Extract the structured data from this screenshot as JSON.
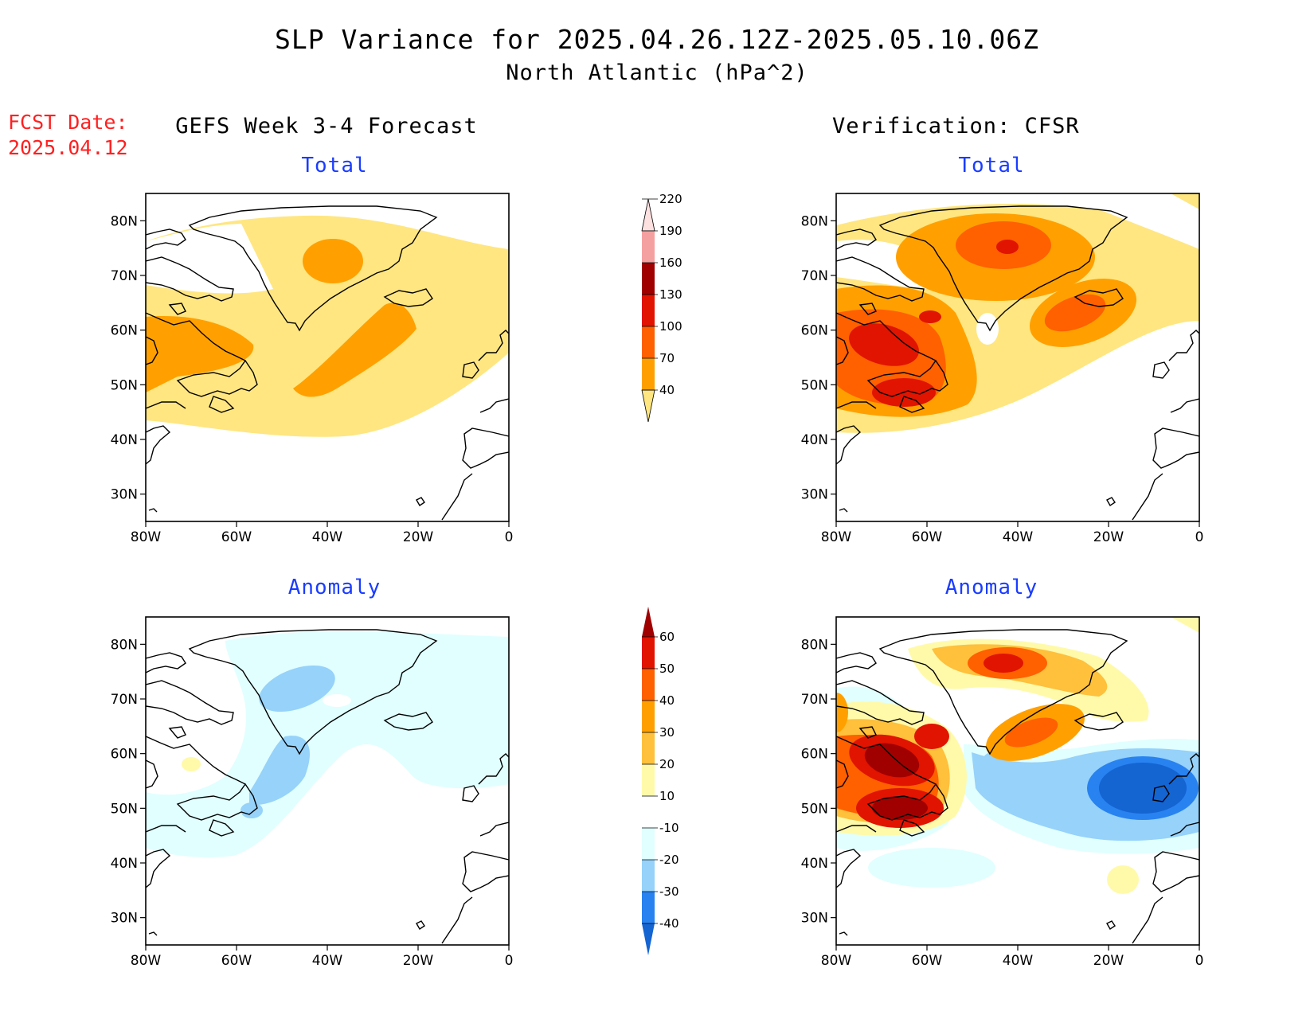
{
  "header": {
    "title": "SLP Variance for 2025.04.26.12Z-2025.05.10.06Z",
    "subtitle": "North Atlantic (hPa^2)",
    "fcst_label": "FCST Date:",
    "fcst_date": "2025.04.12"
  },
  "columns": {
    "left": "GEFS Week 3-4 Forecast",
    "right": "Verification: CFSR"
  },
  "panels": {
    "total_label": "Total",
    "anomaly_label": "Anomaly"
  },
  "axes": {
    "lat_labels": [
      "80N",
      "70N",
      "60N",
      "50N",
      "40N",
      "30N"
    ],
    "lon_labels": [
      "80W",
      "60W",
      "40W",
      "20W",
      "0"
    ],
    "lat_range": [
      25,
      85
    ],
    "lon_range": [
      -80,
      0
    ]
  },
  "colorbars": {
    "total": {
      "labels": [
        "40",
        "70",
        "100",
        "130",
        "160",
        "190",
        "220"
      ],
      "colors": [
        "#ffe680",
        "#ffa000",
        "#ff6000",
        "#e01400",
        "#a00000",
        "#f4a0a0",
        "#fde0e0"
      ]
    },
    "anomaly": {
      "labels": [
        "-40",
        "-30",
        "-20",
        "-10",
        "10",
        "20",
        "30",
        "40",
        "50",
        "60"
      ],
      "colors": [
        "#1464d2",
        "#2882f0",
        "#96d2fa",
        "#e1ffff",
        "#ffffff",
        "#fffaaa",
        "#ffc03c",
        "#ffa000",
        "#ff6000",
        "#e01400",
        "#a00000"
      ]
    }
  }
}
